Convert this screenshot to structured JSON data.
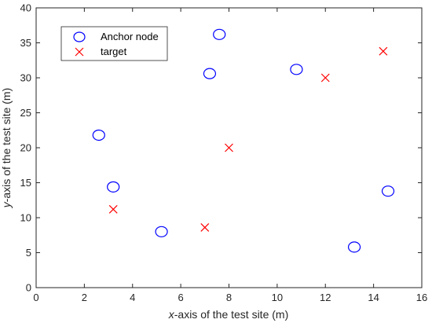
{
  "chart_data": {
    "type": "scatter",
    "title": "",
    "xlabel": {
      "italic": "x",
      "rest": "-axis of the test site (m)"
    },
    "ylabel": {
      "italic": "y",
      "rest": "-axis of the test site (m)"
    },
    "xlim": [
      0,
      16
    ],
    "ylim": [
      0,
      40
    ],
    "xticks": [
      0,
      2,
      4,
      6,
      8,
      10,
      12,
      14,
      16
    ],
    "yticks": [
      0,
      5,
      10,
      15,
      20,
      25,
      30,
      35,
      40
    ],
    "grid": false,
    "legend_position": "top-left",
    "series": [
      {
        "name": "Anchor node",
        "marker": "circle",
        "color": "#0000ff",
        "points": [
          {
            "x": 2.6,
            "y": 21.8
          },
          {
            "x": 3.2,
            "y": 14.4
          },
          {
            "x": 5.2,
            "y": 8.0
          },
          {
            "x": 7.2,
            "y": 30.6
          },
          {
            "x": 7.6,
            "y": 36.2
          },
          {
            "x": 10.8,
            "y": 31.2
          },
          {
            "x": 13.2,
            "y": 5.8
          },
          {
            "x": 14.6,
            "y": 13.8
          }
        ]
      },
      {
        "name": "target",
        "marker": "cross",
        "color": "#ff0000",
        "points": [
          {
            "x": 3.2,
            "y": 11.2
          },
          {
            "x": 7.0,
            "y": 8.6
          },
          {
            "x": 8.0,
            "y": 20.0
          },
          {
            "x": 12.0,
            "y": 30.0
          },
          {
            "x": 14.4,
            "y": 33.8
          }
        ]
      }
    ]
  }
}
